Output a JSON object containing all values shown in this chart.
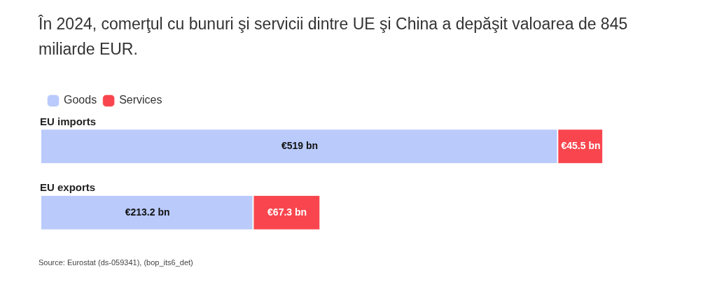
{
  "chart_data": {
    "type": "bar",
    "orientation": "horizontal",
    "stacked": true,
    "title": "În 2024, comerţul cu bunuri şi servicii dintre UE şi China a depăşit valoarea de 845 miliarde EUR.",
    "categories": [
      "EU imports",
      "EU exports"
    ],
    "series": [
      {
        "name": "Goods",
        "color": "#b9cafb",
        "values": [
          519,
          213.2
        ],
        "value_labels": [
          "€519 bn",
          "€213.2 bn"
        ]
      },
      {
        "name": "Services",
        "color": "#f9464e",
        "values": [
          45.5,
          67.3
        ],
        "value_labels": [
          "€45.5 bn",
          "€67.3 bn"
        ]
      }
    ],
    "legend": "top left",
    "annotations": [
      "Source: Eurostat (ds-059341), (bop_its6_det)"
    ]
  }
}
